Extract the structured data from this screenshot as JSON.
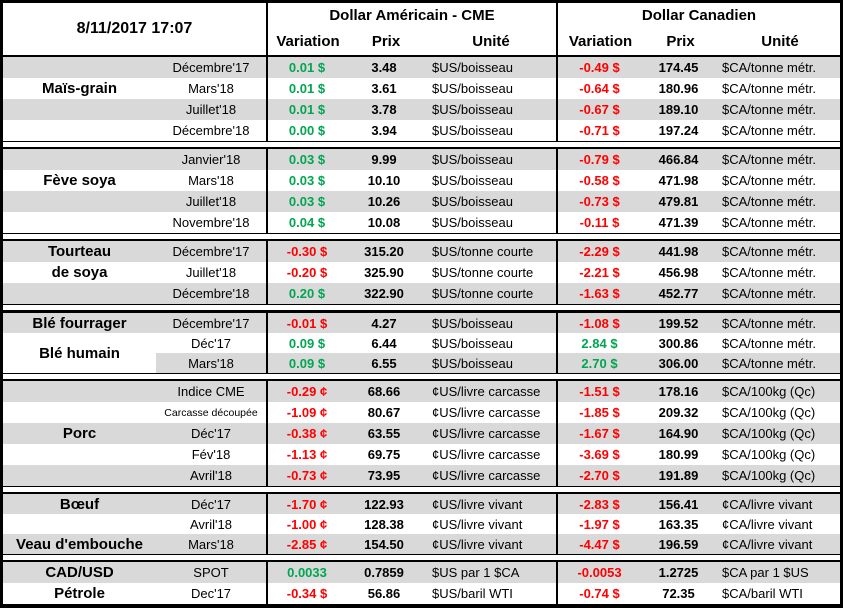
{
  "header": {
    "date": "8/11/2017 17:07",
    "us_title": "Dollar Américain - CME",
    "ca_title": "Dollar Canadien",
    "variation": "Variation",
    "prix": "Prix",
    "unite": "Unité"
  },
  "colors": {
    "positive": "#00A650",
    "negative": "#FF0000",
    "row_alt": "#D9D9D9",
    "border": "#000000"
  },
  "groups": [
    {
      "commodity": "Maïs-grain",
      "rows": [
        {
          "label": "",
          "month": "Décembre'17",
          "us_var": "0.01 $",
          "us_prix": "3.48",
          "us_unit": "$US/boisseau",
          "ca_var": "-0.49 $",
          "ca_prix": "174.45",
          "ca_unit": "$CA/tonne métr."
        },
        {
          "label": "Maïs-grain",
          "month": "Mars'18",
          "us_var": "0.01 $",
          "us_prix": "3.61",
          "us_unit": "$US/boisseau",
          "ca_var": "-0.64 $",
          "ca_prix": "180.96",
          "ca_unit": "$CA/tonne métr."
        },
        {
          "label": "",
          "month": "Juillet'18",
          "us_var": "0.01 $",
          "us_prix": "3.78",
          "us_unit": "$US/boisseau",
          "ca_var": "-0.67 $",
          "ca_prix": "189.10",
          "ca_unit": "$CA/tonne métr."
        },
        {
          "label": "",
          "month": "Décembre'18",
          "us_var": "0.00 $",
          "us_prix": "3.94",
          "us_unit": "$US/boisseau",
          "ca_var": "-0.71 $",
          "ca_prix": "197.24",
          "ca_unit": "$CA/tonne métr."
        }
      ]
    },
    {
      "commodity": "Fève soya",
      "rows": [
        {
          "label": "",
          "month": "Janvier'18",
          "us_var": "0.03 $",
          "us_prix": "9.99",
          "us_unit": "$US/boisseau",
          "ca_var": "-0.79 $",
          "ca_prix": "466.84",
          "ca_unit": "$CA/tonne métr."
        },
        {
          "label": "Fève soya",
          "month": "Mars'18",
          "us_var": "0.03 $",
          "us_prix": "10.10",
          "us_unit": "$US/boisseau",
          "ca_var": "-0.58 $",
          "ca_prix": "471.98",
          "ca_unit": "$CA/tonne métr."
        },
        {
          "label": "",
          "month": "Juillet'18",
          "us_var": "0.03 $",
          "us_prix": "10.26",
          "us_unit": "$US/boisseau",
          "ca_var": "-0.73 $",
          "ca_prix": "479.81",
          "ca_unit": "$CA/tonne métr."
        },
        {
          "label": "",
          "month": "Novembre'18",
          "us_var": "0.04 $",
          "us_prix": "10.08",
          "us_unit": "$US/boisseau",
          "ca_var": "-0.11 $",
          "ca_prix": "471.39",
          "ca_unit": "$CA/tonne métr."
        }
      ]
    },
    {
      "commodity": "Tourteau de soya",
      "rows": [
        {
          "label": "Tourteau",
          "month": "Décembre'17",
          "us_var": "-0.30 $",
          "us_prix": "315.20",
          "us_unit": "$US/tonne courte",
          "ca_var": "-2.29 $",
          "ca_prix": "441.98",
          "ca_unit": "$CA/tonne métr."
        },
        {
          "label": "de soya",
          "month": "Juillet'18",
          "us_var": "-0.20 $",
          "us_prix": "325.90",
          "us_unit": "$US/tonne courte",
          "ca_var": "-2.21 $",
          "ca_prix": "456.98",
          "ca_unit": "$CA/tonne métr."
        },
        {
          "label": "",
          "month": "Décembre'18",
          "us_var": "0.20 $",
          "us_prix": "322.90",
          "us_unit": "$US/tonne courte",
          "ca_var": "-1.63 $",
          "ca_prix": "452.77",
          "ca_unit": "$CA/tonne métr."
        }
      ]
    },
    {
      "commodity": "Blé",
      "rows": [
        {
          "label": "Blé fourrager",
          "month": "Décembre'17",
          "us_var": "-0.01 $",
          "us_prix": "4.27",
          "us_unit": "$US/boisseau",
          "ca_var": "-1.08 $",
          "ca_prix": "199.52",
          "ca_unit": "$CA/tonne métr."
        },
        {
          "label": "Blé humain",
          "label_span": 2,
          "month": "Déc'17",
          "us_var": "0.09 $",
          "us_prix": "6.44",
          "us_unit": "$US/boisseau",
          "ca_var": "2.84 $",
          "ca_prix": "300.86",
          "ca_unit": "$CA/tonne métr."
        },
        {
          "label": "",
          "month": "Mars'18",
          "us_var": "0.09 $",
          "us_prix": "6.55",
          "us_unit": "$US/boisseau",
          "ca_var": "2.70 $",
          "ca_prix": "306.00",
          "ca_unit": "$CA/tonne métr."
        }
      ]
    },
    {
      "commodity": "Porc",
      "rows": [
        {
          "label": "",
          "month": "Indice CME",
          "us_var": "-0.29 ¢",
          "us_prix": "68.66",
          "us_unit": "¢US/livre carcasse",
          "ca_var": "-1.51 $",
          "ca_prix": "178.16",
          "ca_unit": "$CA/100kg (Qc)"
        },
        {
          "label": "",
          "month": "Carcasse découpée",
          "month_small": true,
          "us_var": "-1.09 ¢",
          "us_prix": "80.67",
          "us_unit": "¢US/livre carcasse",
          "ca_var": "-1.85 $",
          "ca_prix": "209.32",
          "ca_unit": "$CA/100kg (Qc)"
        },
        {
          "label": "Porc",
          "month": "Déc'17",
          "us_var": "-0.38 ¢",
          "us_prix": "63.55",
          "us_unit": "¢US/livre carcasse",
          "ca_var": "-1.67 $",
          "ca_prix": "164.90",
          "ca_unit": "$CA/100kg (Qc)"
        },
        {
          "label": "",
          "month": "Fév'18",
          "us_var": "-1.13 ¢",
          "us_prix": "69.75",
          "us_unit": "¢US/livre carcasse",
          "ca_var": "-3.69 $",
          "ca_prix": "180.99",
          "ca_unit": "$CA/100kg (Qc)"
        },
        {
          "label": "",
          "month": "Avril'18",
          "us_var": "-0.73 ¢",
          "us_prix": "73.95",
          "us_unit": "¢US/livre carcasse",
          "ca_var": "-2.70 $",
          "ca_prix": "191.89",
          "ca_unit": "$CA/100kg (Qc)"
        }
      ]
    },
    {
      "commodity": "Bœuf / Veau d'embouche",
      "rows": [
        {
          "label": "Bœuf",
          "month": "Déc'17",
          "us_var": "-1.70 ¢",
          "us_prix": "122.93",
          "us_unit": "¢US/livre vivant",
          "ca_var": "-2.83 $",
          "ca_prix": "156.41",
          "ca_unit": "¢CA/livre vivant"
        },
        {
          "label": "",
          "month": "Avril'18",
          "us_var": "-1.00 ¢",
          "us_prix": "128.38",
          "us_unit": "¢US/livre vivant",
          "ca_var": "-1.97 $",
          "ca_prix": "163.35",
          "ca_unit": "¢CA/livre vivant"
        },
        {
          "label": "Veau d'embouche",
          "month": "Mars'18",
          "us_var": "-2.85 ¢",
          "us_prix": "154.50",
          "us_unit": "¢US/livre vivant",
          "ca_var": "-4.47 $",
          "ca_prix": "196.59",
          "ca_unit": "¢CA/livre vivant"
        }
      ]
    },
    {
      "commodity": "CAD/USD & Pétrole",
      "rows": [
        {
          "label": "CAD/USD",
          "month": "SPOT",
          "us_var": "0.0033",
          "us_prix": "0.7859",
          "us_unit": "$US par 1 $CA",
          "ca_var": "-0.0053",
          "ca_prix": "1.2725",
          "ca_unit": "$CA par 1 $US"
        },
        {
          "label": "Pétrole",
          "month": "Dec'17",
          "us_var": "-0.34 $",
          "us_prix": "56.86",
          "us_unit": "$US/baril WTI",
          "ca_var": "-0.74 $",
          "ca_prix": "72.35",
          "ca_unit": "$CA/baril WTI"
        }
      ]
    }
  ]
}
